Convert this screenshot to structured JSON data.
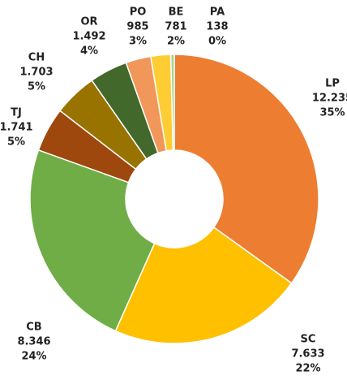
{
  "chart_data": {
    "type": "donut",
    "categories": [
      "LP",
      "SC",
      "CB",
      "TJ",
      "CH",
      "OR",
      "PO",
      "BE",
      "PA"
    ],
    "values": [
      12235,
      7633,
      8346,
      1741,
      1703,
      1492,
      985,
      781,
      138
    ],
    "value_labels": [
      "12.235",
      "7.633",
      "8.346",
      "1.741",
      "1.703",
      "1.492",
      "985",
      "781",
      "138"
    ],
    "percent_labels": [
      "35%",
      "22%",
      "24%",
      "5%",
      "5%",
      "4%",
      "3%",
      "2%",
      "0%"
    ],
    "colors": [
      "#ed7d31",
      "#ffc000",
      "#70ad47",
      "#9e480e",
      "#997300",
      "#43682b",
      "#f1975a",
      "#ffcd33",
      "#a9d18e"
    ]
  }
}
